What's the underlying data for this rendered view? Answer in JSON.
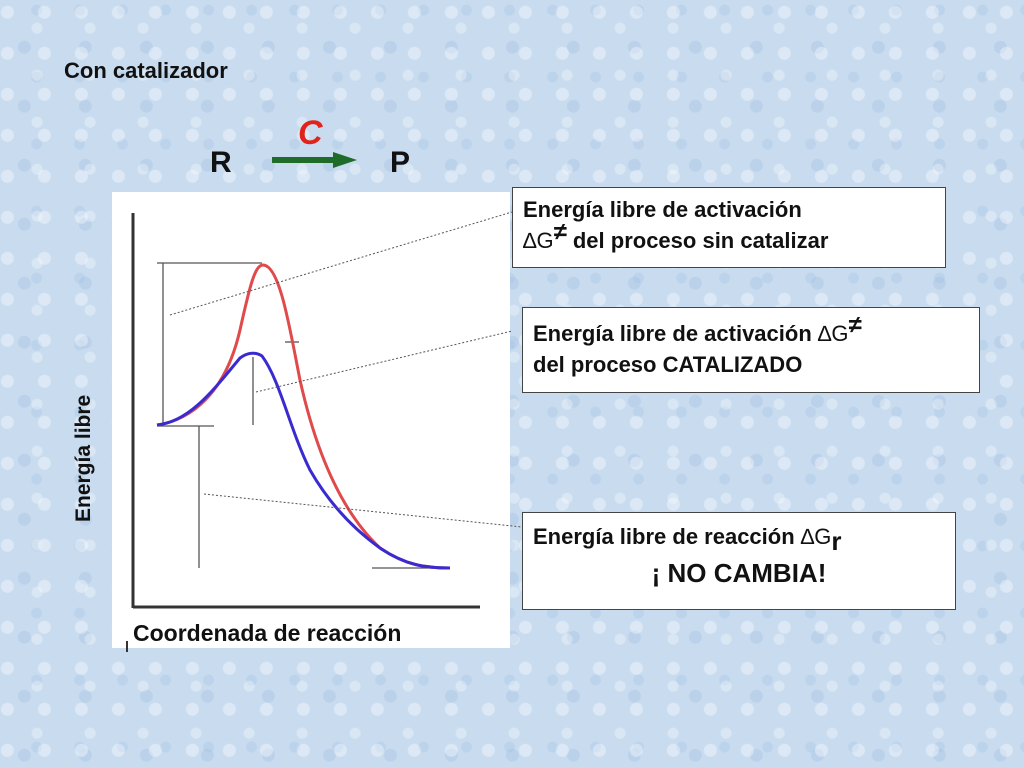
{
  "slide": {
    "heading": "Con catalizador",
    "reactant": "R",
    "product": "P",
    "catalyst": "C"
  },
  "diagram": {
    "y_axis_label": "Energía libre",
    "x_axis_label": "Coordenada de reacción",
    "curves": [
      {
        "name": "sin catalizar",
        "color": "#e04a4a"
      },
      {
        "name": "catalizado",
        "color": "#3a2bd0"
      }
    ]
  },
  "callouts": {
    "uncatalyzed": {
      "line1": "Energía libre de activación",
      "delta_symbol": "∆G",
      "superscript": "≠",
      "line2_rest": " del proceso sin catalizar"
    },
    "catalyzed": {
      "line1_start": "Energía libre de activación ",
      "delta_symbol": "∆G",
      "superscript": "≠",
      "line2": "del proceso CATALIZADO"
    },
    "reaction": {
      "line1_start": "Energía libre de reacción ",
      "delta_symbol": "∆G",
      "subscript": "r",
      "note": "¡ NO CAMBIA!"
    }
  }
}
